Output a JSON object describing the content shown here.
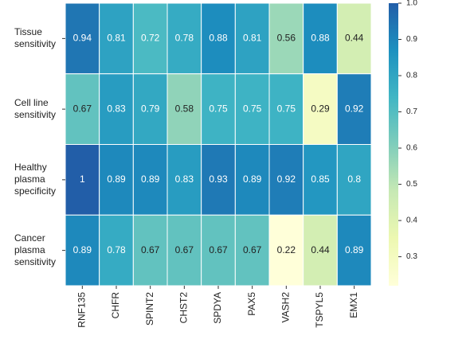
{
  "chart_data": {
    "type": "heatmap",
    "categories": [
      "RNF135",
      "CHFR",
      "SPINT2",
      "CHST2",
      "SPDYA",
      "PAX5",
      "VASH2",
      "TSPYL5",
      "EMX1"
    ],
    "rows": [
      [
        "Tissue",
        "sensitivity"
      ],
      [
        "Cell line",
        "sensitivity"
      ],
      [
        "Healthy",
        "plasma",
        "specificity"
      ],
      [
        "Cancer",
        "plasma",
        "sensitivity"
      ]
    ],
    "values": [
      [
        0.94,
        0.81,
        0.72,
        0.78,
        0.88,
        0.81,
        0.56,
        0.88,
        0.44
      ],
      [
        0.67,
        0.83,
        0.79,
        0.58,
        0.75,
        0.75,
        0.75,
        0.29,
        0.92
      ],
      [
        1,
        0.89,
        0.89,
        0.83,
        0.93,
        0.89,
        0.92,
        0.85,
        0.8
      ],
      [
        0.89,
        0.78,
        0.67,
        0.67,
        0.67,
        0.67,
        0.22,
        0.44,
        0.89
      ]
    ],
    "colormap": [
      "#ffffd9",
      "#edf8b1",
      "#c7e9b4",
      "#7fcdbb",
      "#41b6c4",
      "#1d91c0",
      "#225ea8"
    ],
    "clim": [
      0.22,
      1
    ],
    "cticks": [
      0.3,
      0.4,
      0.5,
      0.6,
      0.7,
      0.8,
      0.9,
      {
        "value": 1,
        "label": "1.0"
      }
    ]
  }
}
